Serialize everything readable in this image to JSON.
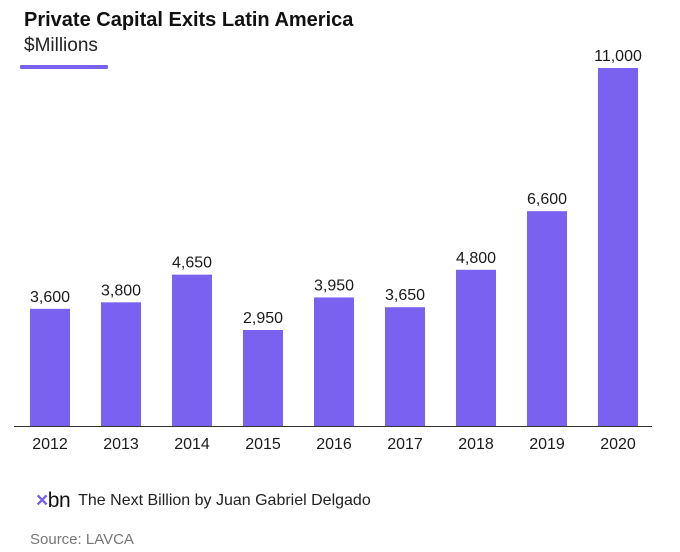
{
  "header": {
    "title": "Private Capital Exits Latin America",
    "subtitle": "$Millions"
  },
  "colors": {
    "bar": "#7B61F0",
    "accent": "#7B61F0",
    "axis": "#333333"
  },
  "chart_data": {
    "type": "bar",
    "title": "Private Capital Exits Latin America",
    "subtitle": "$Millions",
    "categories": [
      "2012",
      "2013",
      "2014",
      "2015",
      "2016",
      "2017",
      "2018",
      "2019",
      "2020"
    ],
    "values": [
      3600,
      3800,
      4650,
      2950,
      3950,
      3650,
      4800,
      6600,
      11000
    ],
    "value_labels": [
      "3,600",
      "3,800",
      "4,650",
      "2,950",
      "3,950",
      "3,650",
      "4,800",
      "6,600",
      "11,000"
    ],
    "ylim": [
      0,
      11000
    ],
    "grid": false,
    "legend": "none"
  },
  "footer": {
    "logo_text": "bn",
    "logo_icon": "x-mark-icon",
    "brand_text": "The Next Billion by Juan Gabriel Delgado",
    "source": "Source: LAVCA"
  }
}
